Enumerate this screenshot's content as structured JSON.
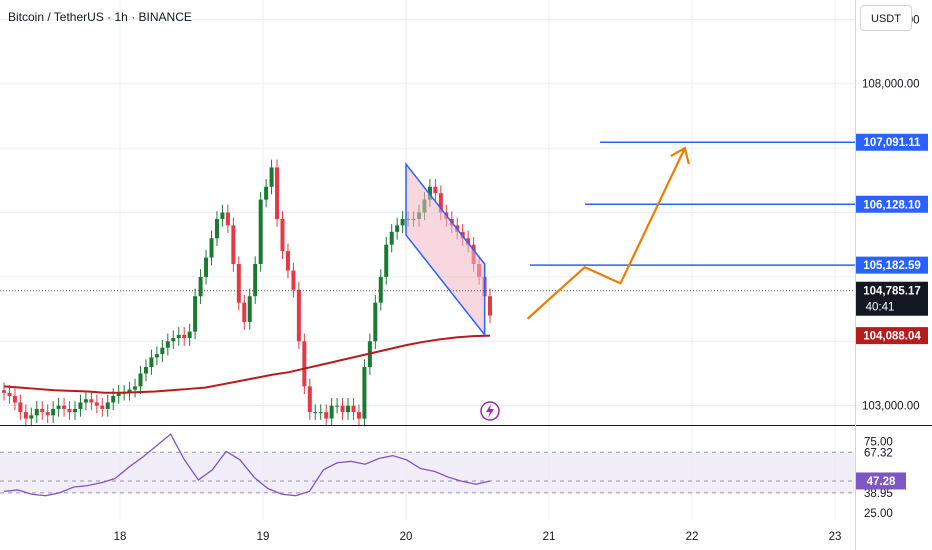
{
  "header": {
    "symbol": "Bitcoin / TetherUS",
    "interval": "1h",
    "exchange": "BINANCE",
    "separator": " · ",
    "currency_button": "USDT"
  },
  "colors": {
    "grid": "#e5f0f4",
    "up": "#26a69a",
    "candle_up": "#1b7a32",
    "candle_down": "#e53945",
    "ma": "#b71c1c",
    "channel": "#2962ff",
    "channel_fill": "#f3b6c2",
    "projection": "#ef7d00",
    "level": "#2962ff",
    "rsi": "#7e57c2",
    "rsi_band": "#ede7f6"
  },
  "price_axis": {
    "ticks": [
      "109,000.00",
      "108,000.00",
      "103,000.00"
    ],
    "levels": [
      {
        "value": 107091.11,
        "label": "107,091.11"
      },
      {
        "value": 106128.1,
        "label": "106,128.10"
      },
      {
        "value": 105182.59,
        "label": "105,182.59"
      }
    ],
    "current": {
      "value": 104785.17,
      "label": "104,785.17",
      "countdown": "40:41"
    },
    "ma_value": {
      "value": 104088.04,
      "label": "104,088.04"
    }
  },
  "rsi_axis": {
    "ticks": [
      "75.00",
      "67.32",
      "38.95",
      "25.00"
    ],
    "current": {
      "value": 47.28,
      "label": "47.28"
    }
  },
  "time_axis": [
    "18",
    "19",
    "20",
    "21",
    "22",
    "23"
  ],
  "chart_data": {
    "type": "line",
    "title": "Bitcoin / TetherUS · 1h · BINANCE",
    "ylim": [
      102700,
      109300
    ],
    "candles_close": [
      103200,
      103150,
      103050,
      102900,
      102800,
      102850,
      102950,
      102900,
      102850,
      102950,
      103000,
      102950,
      102900,
      102950,
      103050,
      103100,
      103050,
      103000,
      102950,
      103050,
      103150,
      103200,
      103200,
      103250,
      103300,
      103500,
      103600,
      103750,
      103800,
      103900,
      104000,
      104050,
      104100,
      104050,
      104150,
      104700,
      105000,
      105300,
      105600,
      105900,
      106000,
      105800,
      105200,
      104600,
      104300,
      104700,
      105200,
      106200,
      106400,
      106700,
      105900,
      105400,
      105100,
      104800,
      104000,
      103300,
      102900,
      102900,
      102900,
      102800,
      103000,
      103000,
      102900,
      103000,
      102900,
      102800,
      103600,
      104000,
      104600,
      105000,
      105500,
      105700,
      105800,
      105900,
      105900,
      105900,
      106000,
      106200,
      106400,
      106300,
      106000,
      105900,
      105800,
      105700,
      105600,
      105500,
      105200,
      105000,
      104700,
      104400
    ],
    "ma": [
      103300,
      103280,
      103260,
      103240,
      103230,
      103220,
      103200,
      103200,
      103210,
      103220,
      103240,
      103260,
      103280,
      103330,
      103380,
      103430,
      103480,
      103520,
      103580,
      103640,
      103700,
      103760,
      103820,
      103880,
      103940,
      103990,
      104030,
      104060,
      104080,
      104088
    ],
    "rsi": {
      "series": [
        40,
        41,
        38,
        37,
        39,
        43,
        44,
        46,
        49,
        57,
        64,
        72,
        80,
        62,
        48,
        55,
        68,
        62,
        50,
        42,
        38,
        37,
        40,
        55,
        60,
        61,
        59,
        63,
        65,
        62,
        56,
        54,
        50,
        47,
        45,
        47.28
      ],
      "ylim": [
        20,
        85
      ]
    },
    "annotations": {
      "channel": [
        [
          20.0,
          106750
        ],
        [
          20.55,
          105200
        ],
        [
          20.55,
          104100
        ],
        [
          20.0,
          105650
        ]
      ],
      "projection": [
        [
          20.85,
          104350
        ],
        [
          21.25,
          105150
        ],
        [
          21.5,
          104900
        ],
        [
          21.95,
          107000
        ]
      ],
      "x_ticks": [
        "18",
        "19",
        "20",
        "21",
        "22",
        "23"
      ]
    }
  }
}
